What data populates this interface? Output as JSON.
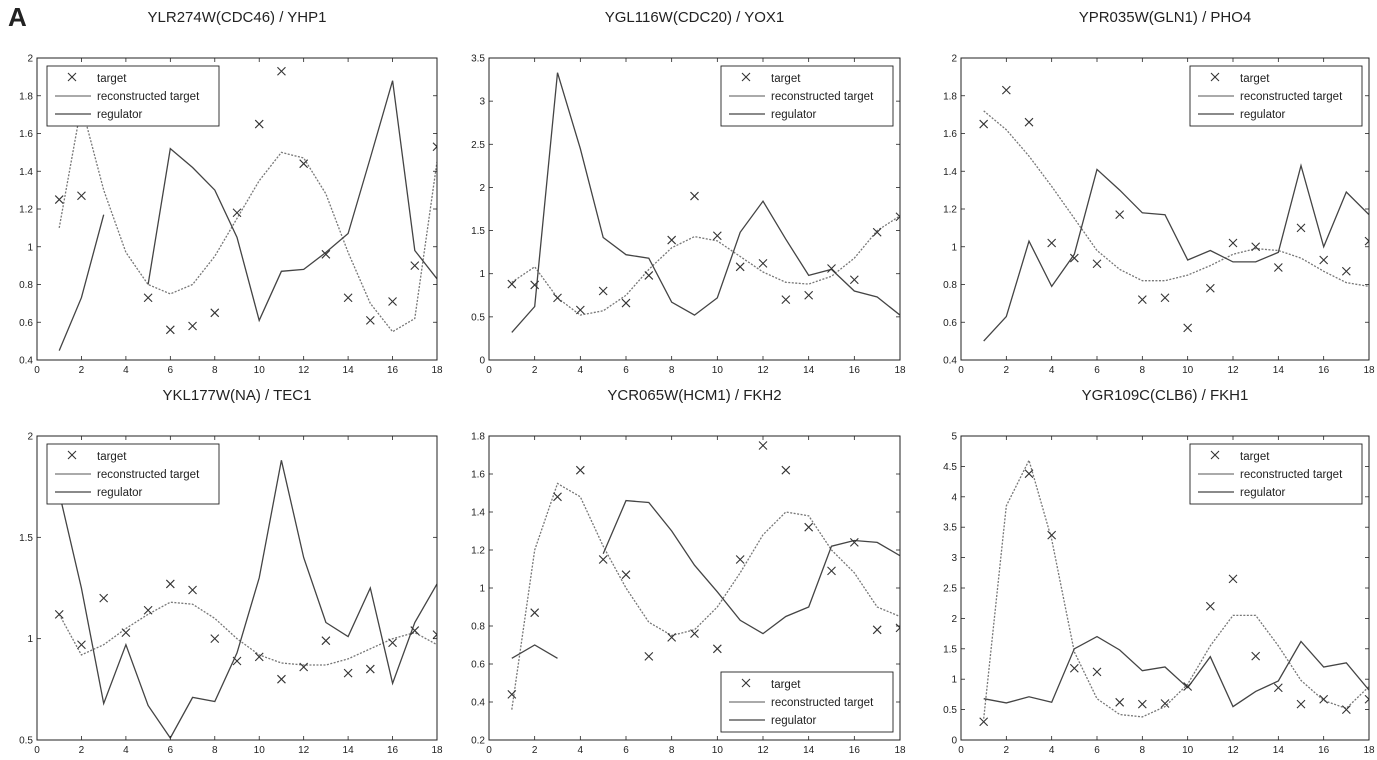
{
  "panel_label": "A",
  "legend_labels": {
    "target": "target",
    "reconstructed": "reconstructed target",
    "regulator": "regulator"
  },
  "colors": {
    "axis": "#222222",
    "target": "#333333",
    "reconstructed": "#777777",
    "regulator": "#444444"
  },
  "chart_data": [
    {
      "type": "line",
      "title": "YLR274W(CDC46) / YHP1",
      "xlim": [
        0,
        18
      ],
      "ylim": [
        0.4,
        2
      ],
      "xticks": [
        0,
        2,
        4,
        6,
        8,
        10,
        12,
        14,
        16,
        18
      ],
      "yticks": [
        0.4,
        0.6,
        0.8,
        1,
        1.2,
        1.4,
        1.6,
        1.8,
        2
      ],
      "ytick_labels": [
        "0.4",
        "0.6",
        "0.8",
        "1",
        "1.2",
        "1.4",
        "1.6",
        "1.8",
        "2"
      ],
      "legend": "top-left",
      "x": [
        1,
        2,
        3,
        4,
        5,
        6,
        7,
        8,
        9,
        10,
        11,
        12,
        13,
        14,
        15,
        16,
        17,
        18
      ],
      "target": [
        1.25,
        1.27,
        null,
        null,
        0.73,
        0.56,
        0.58,
        0.65,
        1.18,
        1.65,
        1.93,
        1.44,
        0.96,
        0.73,
        0.61,
        0.71,
        0.9,
        1.53
      ],
      "reconstructed": [
        1.1,
        1.75,
        1.3,
        0.97,
        0.8,
        0.75,
        0.8,
        0.95,
        1.15,
        1.35,
        1.5,
        1.47,
        1.28,
        0.97,
        0.7,
        0.55,
        0.62,
        1.45
      ],
      "regulator": [
        0.45,
        0.73,
        1.17,
        null,
        0.8,
        1.52,
        1.42,
        1.3,
        1.05,
        0.61,
        0.87,
        0.88,
        0.97,
        1.07,
        1.47,
        1.88,
        0.98,
        0.83
      ]
    },
    {
      "type": "line",
      "title": "YGL116W(CDC20) / YOX1",
      "xlim": [
        0,
        18
      ],
      "ylim": [
        0,
        3.5
      ],
      "xticks": [
        0,
        2,
        4,
        6,
        8,
        10,
        12,
        14,
        16,
        18
      ],
      "yticks": [
        0,
        0.5,
        1,
        1.5,
        2,
        2.5,
        3,
        3.5
      ],
      "ytick_labels": [
        "0",
        "0.5",
        "1",
        "1.5",
        "2",
        "2.5",
        "3",
        "3.5"
      ],
      "legend": "top-right",
      "x": [
        1,
        2,
        3,
        4,
        5,
        6,
        7,
        8,
        9,
        10,
        11,
        12,
        13,
        14,
        15,
        16,
        17,
        18
      ],
      "target": [
        0.88,
        0.87,
        0.72,
        0.58,
        0.8,
        0.66,
        0.98,
        1.39,
        1.9,
        1.44,
        1.08,
        1.12,
        0.7,
        0.75,
        1.06,
        0.93,
        1.48,
        1.66
      ],
      "reconstructed": [
        0.9,
        1.08,
        0.72,
        0.52,
        0.57,
        0.75,
        1.05,
        1.3,
        1.43,
        1.38,
        1.2,
        1.02,
        0.9,
        0.88,
        0.97,
        1.18,
        1.5,
        1.67
      ],
      "regulator": [
        0.32,
        0.62,
        3.33,
        2.45,
        1.42,
        1.22,
        1.18,
        0.67,
        0.52,
        0.72,
        1.48,
        1.84,
        1.4,
        0.98,
        1.05,
        0.8,
        0.73,
        0.52
      ]
    },
    {
      "type": "line",
      "title": "YPR035W(GLN1) / PHO4",
      "xlim": [
        0,
        18
      ],
      "ylim": [
        0.4,
        2
      ],
      "xticks": [
        0,
        2,
        4,
        6,
        8,
        10,
        12,
        14,
        16,
        18
      ],
      "yticks": [
        0.4,
        0.6,
        0.8,
        1,
        1.2,
        1.4,
        1.6,
        1.8,
        2
      ],
      "ytick_labels": [
        "0.4",
        "0.6",
        "0.8",
        "1",
        "1.2",
        "1.4",
        "1.6",
        "1.8",
        "2"
      ],
      "legend": "top-right",
      "x": [
        1,
        2,
        3,
        4,
        5,
        6,
        7,
        8,
        9,
        10,
        11,
        12,
        13,
        14,
        15,
        16,
        17,
        18
      ],
      "target": [
        1.65,
        1.83,
        1.66,
        1.02,
        0.94,
        0.91,
        1.17,
        0.72,
        0.73,
        0.57,
        0.78,
        1.02,
        1.0,
        0.89,
        1.1,
        0.93,
        0.87,
        1.03
      ],
      "reconstructed": [
        1.72,
        1.62,
        1.48,
        1.32,
        1.15,
        0.98,
        0.88,
        0.82,
        0.82,
        0.85,
        0.9,
        0.96,
        0.99,
        0.98,
        0.94,
        0.87,
        0.81,
        0.79
      ],
      "regulator": [
        0.5,
        0.63,
        1.03,
        0.79,
        0.96,
        1.41,
        1.3,
        1.18,
        1.17,
        0.93,
        0.98,
        0.92,
        0.92,
        0.97,
        1.43,
        1.0,
        1.29,
        1.17
      ]
    },
    {
      "type": "line",
      "title": "YKL177W(NA) / TEC1",
      "xlim": [
        0,
        18
      ],
      "ylim": [
        0.5,
        2
      ],
      "xticks": [
        0,
        2,
        4,
        6,
        8,
        10,
        12,
        14,
        16,
        18
      ],
      "yticks": [
        0.5,
        1,
        1.5,
        2
      ],
      "ytick_labels": [
        "0.5",
        "1",
        "1.5",
        "2"
      ],
      "legend": "top-left",
      "x": [
        1,
        2,
        3,
        4,
        5,
        6,
        7,
        8,
        9,
        10,
        11,
        12,
        13,
        14,
        15,
        16,
        17,
        18
      ],
      "target": [
        1.12,
        0.97,
        1.2,
        1.03,
        1.14,
        1.27,
        1.24,
        1.0,
        0.89,
        0.91,
        0.8,
        0.86,
        0.99,
        0.83,
        0.85,
        0.98,
        1.04,
        1.02
      ],
      "reconstructed": [
        1.12,
        0.92,
        0.97,
        1.05,
        1.12,
        1.18,
        1.17,
        1.1,
        1.0,
        0.92,
        0.88,
        0.87,
        0.87,
        0.9,
        0.95,
        1.0,
        1.03,
        0.97
      ],
      "regulator": [
        1.72,
        1.25,
        0.68,
        0.97,
        0.67,
        0.51,
        0.71,
        0.69,
        0.93,
        1.3,
        1.88,
        1.4,
        1.08,
        1.01,
        1.25,
        0.78,
        1.08,
        1.27
      ]
    },
    {
      "type": "line",
      "title": "YCR065W(HCM1) / FKH2",
      "xlim": [
        0,
        18
      ],
      "ylim": [
        0.2,
        1.8
      ],
      "xticks": [
        0,
        2,
        4,
        6,
        8,
        10,
        12,
        14,
        16,
        18
      ],
      "yticks": [
        0.2,
        0.4,
        0.6,
        0.8,
        1,
        1.2,
        1.4,
        1.6,
        1.8
      ],
      "ytick_labels": [
        "0.2",
        "0.4",
        "0.6",
        "0.8",
        "1",
        "1.2",
        "1.4",
        "1.6",
        "1.8"
      ],
      "legend": "bottom-right",
      "x": [
        1,
        2,
        3,
        4,
        5,
        6,
        7,
        8,
        9,
        10,
        11,
        12,
        13,
        14,
        15,
        16,
        17,
        18
      ],
      "target": [
        0.44,
        0.87,
        1.48,
        1.62,
        1.15,
        1.07,
        0.64,
        0.74,
        0.76,
        0.68,
        1.15,
        1.75,
        1.62,
        1.32,
        1.09,
        1.24,
        0.78,
        0.79
      ],
      "reconstructed": [
        0.36,
        1.2,
        1.55,
        1.48,
        1.22,
        1.0,
        0.82,
        0.75,
        0.78,
        0.9,
        1.08,
        1.28,
        1.4,
        1.38,
        1.2,
        1.08,
        0.9,
        0.85
      ],
      "regulator": [
        0.63,
        0.7,
        0.63,
        null,
        1.18,
        1.46,
        1.45,
        1.3,
        1.12,
        0.98,
        0.83,
        0.76,
        0.85,
        0.9,
        1.22,
        1.25,
        1.24,
        1.17
      ]
    },
    {
      "type": "line",
      "title": "YGR109C(CLB6) / FKH1",
      "xlim": [
        0,
        18
      ],
      "ylim": [
        0,
        5
      ],
      "xticks": [
        0,
        2,
        4,
        6,
        8,
        10,
        12,
        14,
        16,
        18
      ],
      "yticks": [
        0,
        0.5,
        1,
        1.5,
        2,
        2.5,
        3,
        3.5,
        4,
        4.5,
        5
      ],
      "ytick_labels": [
        "0",
        "0.5",
        "1",
        "1.5",
        "2",
        "2.5",
        "3",
        "3.5",
        "4",
        "4.5",
        "5"
      ],
      "legend": "top-right",
      "x": [
        1,
        2,
        3,
        4,
        5,
        6,
        7,
        8,
        9,
        10,
        11,
        12,
        13,
        14,
        15,
        16,
        17,
        18
      ],
      "target": [
        0.3,
        null,
        4.38,
        3.37,
        1.18,
        1.12,
        0.62,
        0.59,
        0.6,
        0.88,
        2.2,
        2.65,
        1.38,
        0.86,
        0.59,
        0.67,
        0.5,
        0.67
      ],
      "reconstructed": [
        0.35,
        3.85,
        4.6,
        3.3,
        1.45,
        0.68,
        0.42,
        0.38,
        0.55,
        0.92,
        1.55,
        2.05,
        2.05,
        1.55,
        0.98,
        0.65,
        0.52,
        0.88
      ],
      "regulator": [
        0.68,
        0.61,
        0.71,
        0.62,
        1.5,
        1.7,
        1.48,
        1.14,
        1.2,
        0.86,
        1.37,
        0.55,
        0.8,
        0.97,
        1.62,
        1.2,
        1.27,
        0.82
      ]
    }
  ]
}
